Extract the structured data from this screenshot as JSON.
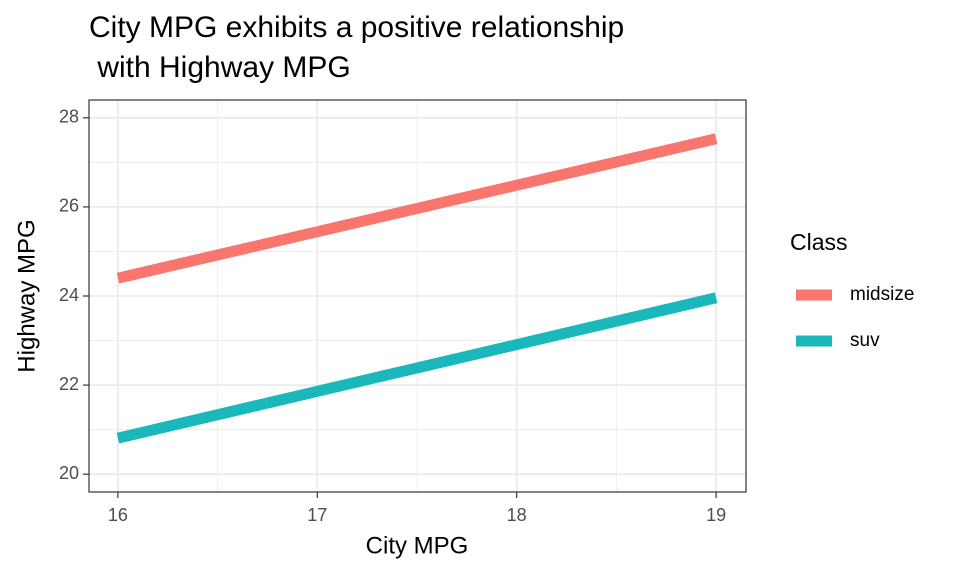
{
  "chart_data": {
    "type": "line",
    "title": [
      "City MPG exhibits a positive relationship",
      " with Highway MPG"
    ],
    "x_label": "City MPG",
    "y_label": "Highway MPG",
    "x": [
      16,
      19
    ],
    "series": [
      {
        "name": "midsize",
        "color": "#f8766d",
        "values": [
          24.4,
          27.53
        ]
      },
      {
        "name": "suv",
        "color": "#1bb8bb",
        "values": [
          20.81,
          23.96
        ]
      }
    ],
    "legend_title": "Class",
    "legend": "right",
    "xlim": [
      15.855,
      19.15
    ],
    "ylim": [
      19.6,
      28.4
    ],
    "xticks": [
      16,
      17,
      18,
      19
    ],
    "yticks": [
      20,
      22,
      24,
      26,
      28
    ],
    "x_minor_ticks": [
      16.5,
      17.5,
      18.5
    ],
    "y_minor_ticks": [
      21,
      23,
      25,
      27
    ],
    "grid": true
  }
}
